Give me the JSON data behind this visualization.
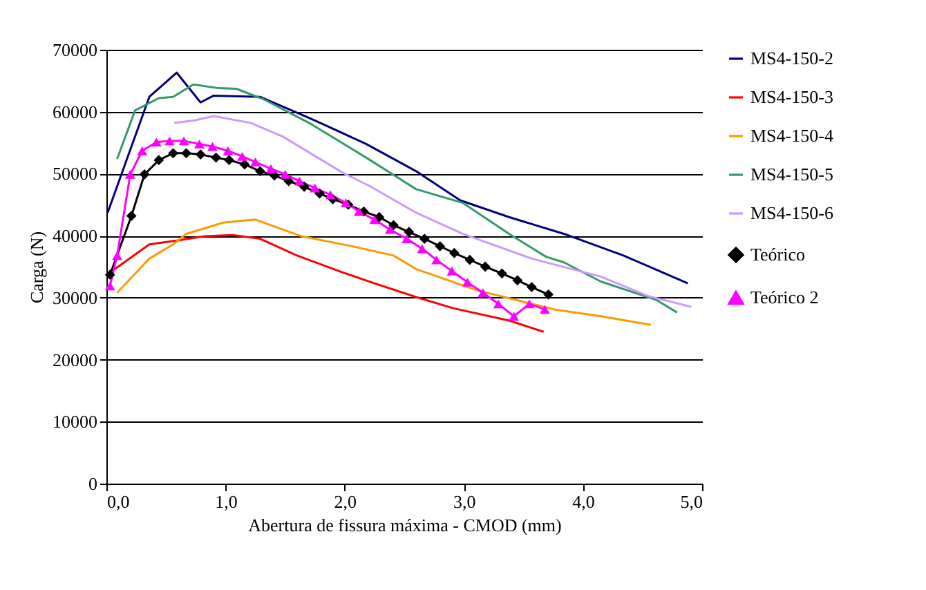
{
  "chart_data": {
    "type": "line",
    "xlabel": "Abertura de fissura máxima - CMOD (mm)",
    "ylabel": "Carga (N)",
    "xlim": [
      0,
      5
    ],
    "xticks": [
      {
        "value": 0,
        "label": "0,0"
      },
      {
        "value": 1,
        "label": "1,0"
      },
      {
        "value": 2,
        "label": "2,0"
      },
      {
        "value": 3,
        "label": "3,0"
      },
      {
        "value": 4,
        "label": "4,0"
      },
      {
        "value": 5,
        "label": "5,0"
      }
    ],
    "ylim": [
      0,
      70000
    ],
    "yticks": [
      0,
      10000,
      20000,
      30000,
      40000,
      50000,
      60000,
      70000
    ],
    "grid": "y",
    "legend": "right",
    "series": [
      {
        "name": "MS4-150-2",
        "color": "#000080",
        "marker": "none",
        "x": [
          0.01,
          0.36,
          0.59,
          0.79,
          0.9,
          1.29,
          1.75,
          2.18,
          2.6,
          2.97,
          3.38,
          3.84,
          4.34,
          4.88
        ],
        "values": [
          43700,
          62400,
          66300,
          61500,
          62600,
          62400,
          58600,
          54800,
          50400,
          45700,
          43000,
          40300,
          36800,
          32300
        ]
      },
      {
        "name": "MS4-150-3",
        "color": "#ff0000",
        "marker": "none",
        "x": [
          0.07,
          0.36,
          0.59,
          0.82,
          1.06,
          1.29,
          1.6,
          1.98,
          2.22,
          2.6,
          2.91,
          3.38,
          3.67
        ],
        "values": [
          34600,
          38600,
          39200,
          39900,
          40100,
          39500,
          36800,
          34100,
          32500,
          30100,
          28300,
          26300,
          24500
        ]
      },
      {
        "name": "MS4-150-4",
        "color": "#ff9900",
        "marker": "none",
        "x": [
          0.09,
          0.36,
          0.56,
          0.67,
          0.98,
          1.25,
          1.64,
          2.06,
          2.41,
          2.6,
          3.11,
          3.76,
          4.15,
          4.57
        ],
        "values": [
          30800,
          36300,
          38600,
          40300,
          42100,
          42600,
          39900,
          38300,
          36800,
          34600,
          31200,
          28100,
          27000,
          25600
        ]
      },
      {
        "name": "MS4-150-5",
        "color": "#339966",
        "marker": "none",
        "x": [
          0.09,
          0.24,
          0.44,
          0.56,
          0.73,
          0.94,
          1.09,
          1.32,
          1.72,
          2.18,
          2.6,
          2.99,
          3.38,
          3.69,
          3.84,
          4.15,
          4.62,
          4.79
        ],
        "values": [
          52400,
          60200,
          62200,
          62400,
          64400,
          63800,
          63700,
          62000,
          58000,
          52600,
          47500,
          45300,
          40300,
          36600,
          35700,
          32600,
          29600,
          27600
        ]
      },
      {
        "name": "MS4-150-6",
        "color": "#cc99ff",
        "marker": "none",
        "x": [
          0.57,
          0.74,
          0.9,
          1.21,
          1.48,
          1.98,
          2.22,
          2.6,
          2.99,
          3.57,
          4.15,
          4.54,
          4.91
        ],
        "values": [
          58200,
          58600,
          59300,
          58200,
          56000,
          50200,
          47900,
          43700,
          40300,
          36300,
          33400,
          30300,
          28500
        ]
      },
      {
        "name": "Teórico",
        "color": "#000000",
        "marker": "diamond",
        "x": [
          0.03,
          0.21,
          0.32,
          0.44,
          0.56,
          0.67,
          0.79,
          0.92,
          1.03,
          1.16,
          1.29,
          1.41,
          1.53,
          1.66,
          1.79,
          1.9,
          2.03,
          2.16,
          2.29,
          2.41,
          2.54,
          2.67,
          2.8,
          2.92,
          3.05,
          3.18,
          3.32,
          3.45,
          3.57,
          3.71
        ],
        "values": [
          33700,
          43200,
          49900,
          52200,
          53300,
          53300,
          53100,
          52600,
          52200,
          51500,
          50400,
          49700,
          48800,
          47900,
          46800,
          45900,
          45000,
          43900,
          43000,
          41700,
          40600,
          39500,
          38300,
          37200,
          36100,
          35000,
          33900,
          32800,
          31700,
          30500
        ]
      },
      {
        "name": "Teórico 2",
        "color": "#ff00ff",
        "marker": "triangle",
        "x": [
          0.03,
          0.09,
          0.2,
          0.3,
          0.42,
          0.53,
          0.65,
          0.78,
          0.89,
          1.02,
          1.14,
          1.25,
          1.38,
          1.5,
          1.62,
          1.75,
          1.88,
          2.01,
          2.12,
          2.25,
          2.38,
          2.52,
          2.65,
          2.77,
          2.9,
          3.03,
          3.16,
          3.29,
          3.42,
          3.55,
          3.68
        ],
        "values": [
          31900,
          36800,
          49900,
          53700,
          55100,
          55300,
          55300,
          54800,
          54400,
          53700,
          52800,
          51900,
          50800,
          49900,
          48800,
          47700,
          46600,
          45300,
          43900,
          42600,
          41000,
          39500,
          37900,
          36100,
          34300,
          32500,
          30800,
          29000,
          27000,
          29000,
          28100
        ]
      }
    ]
  }
}
